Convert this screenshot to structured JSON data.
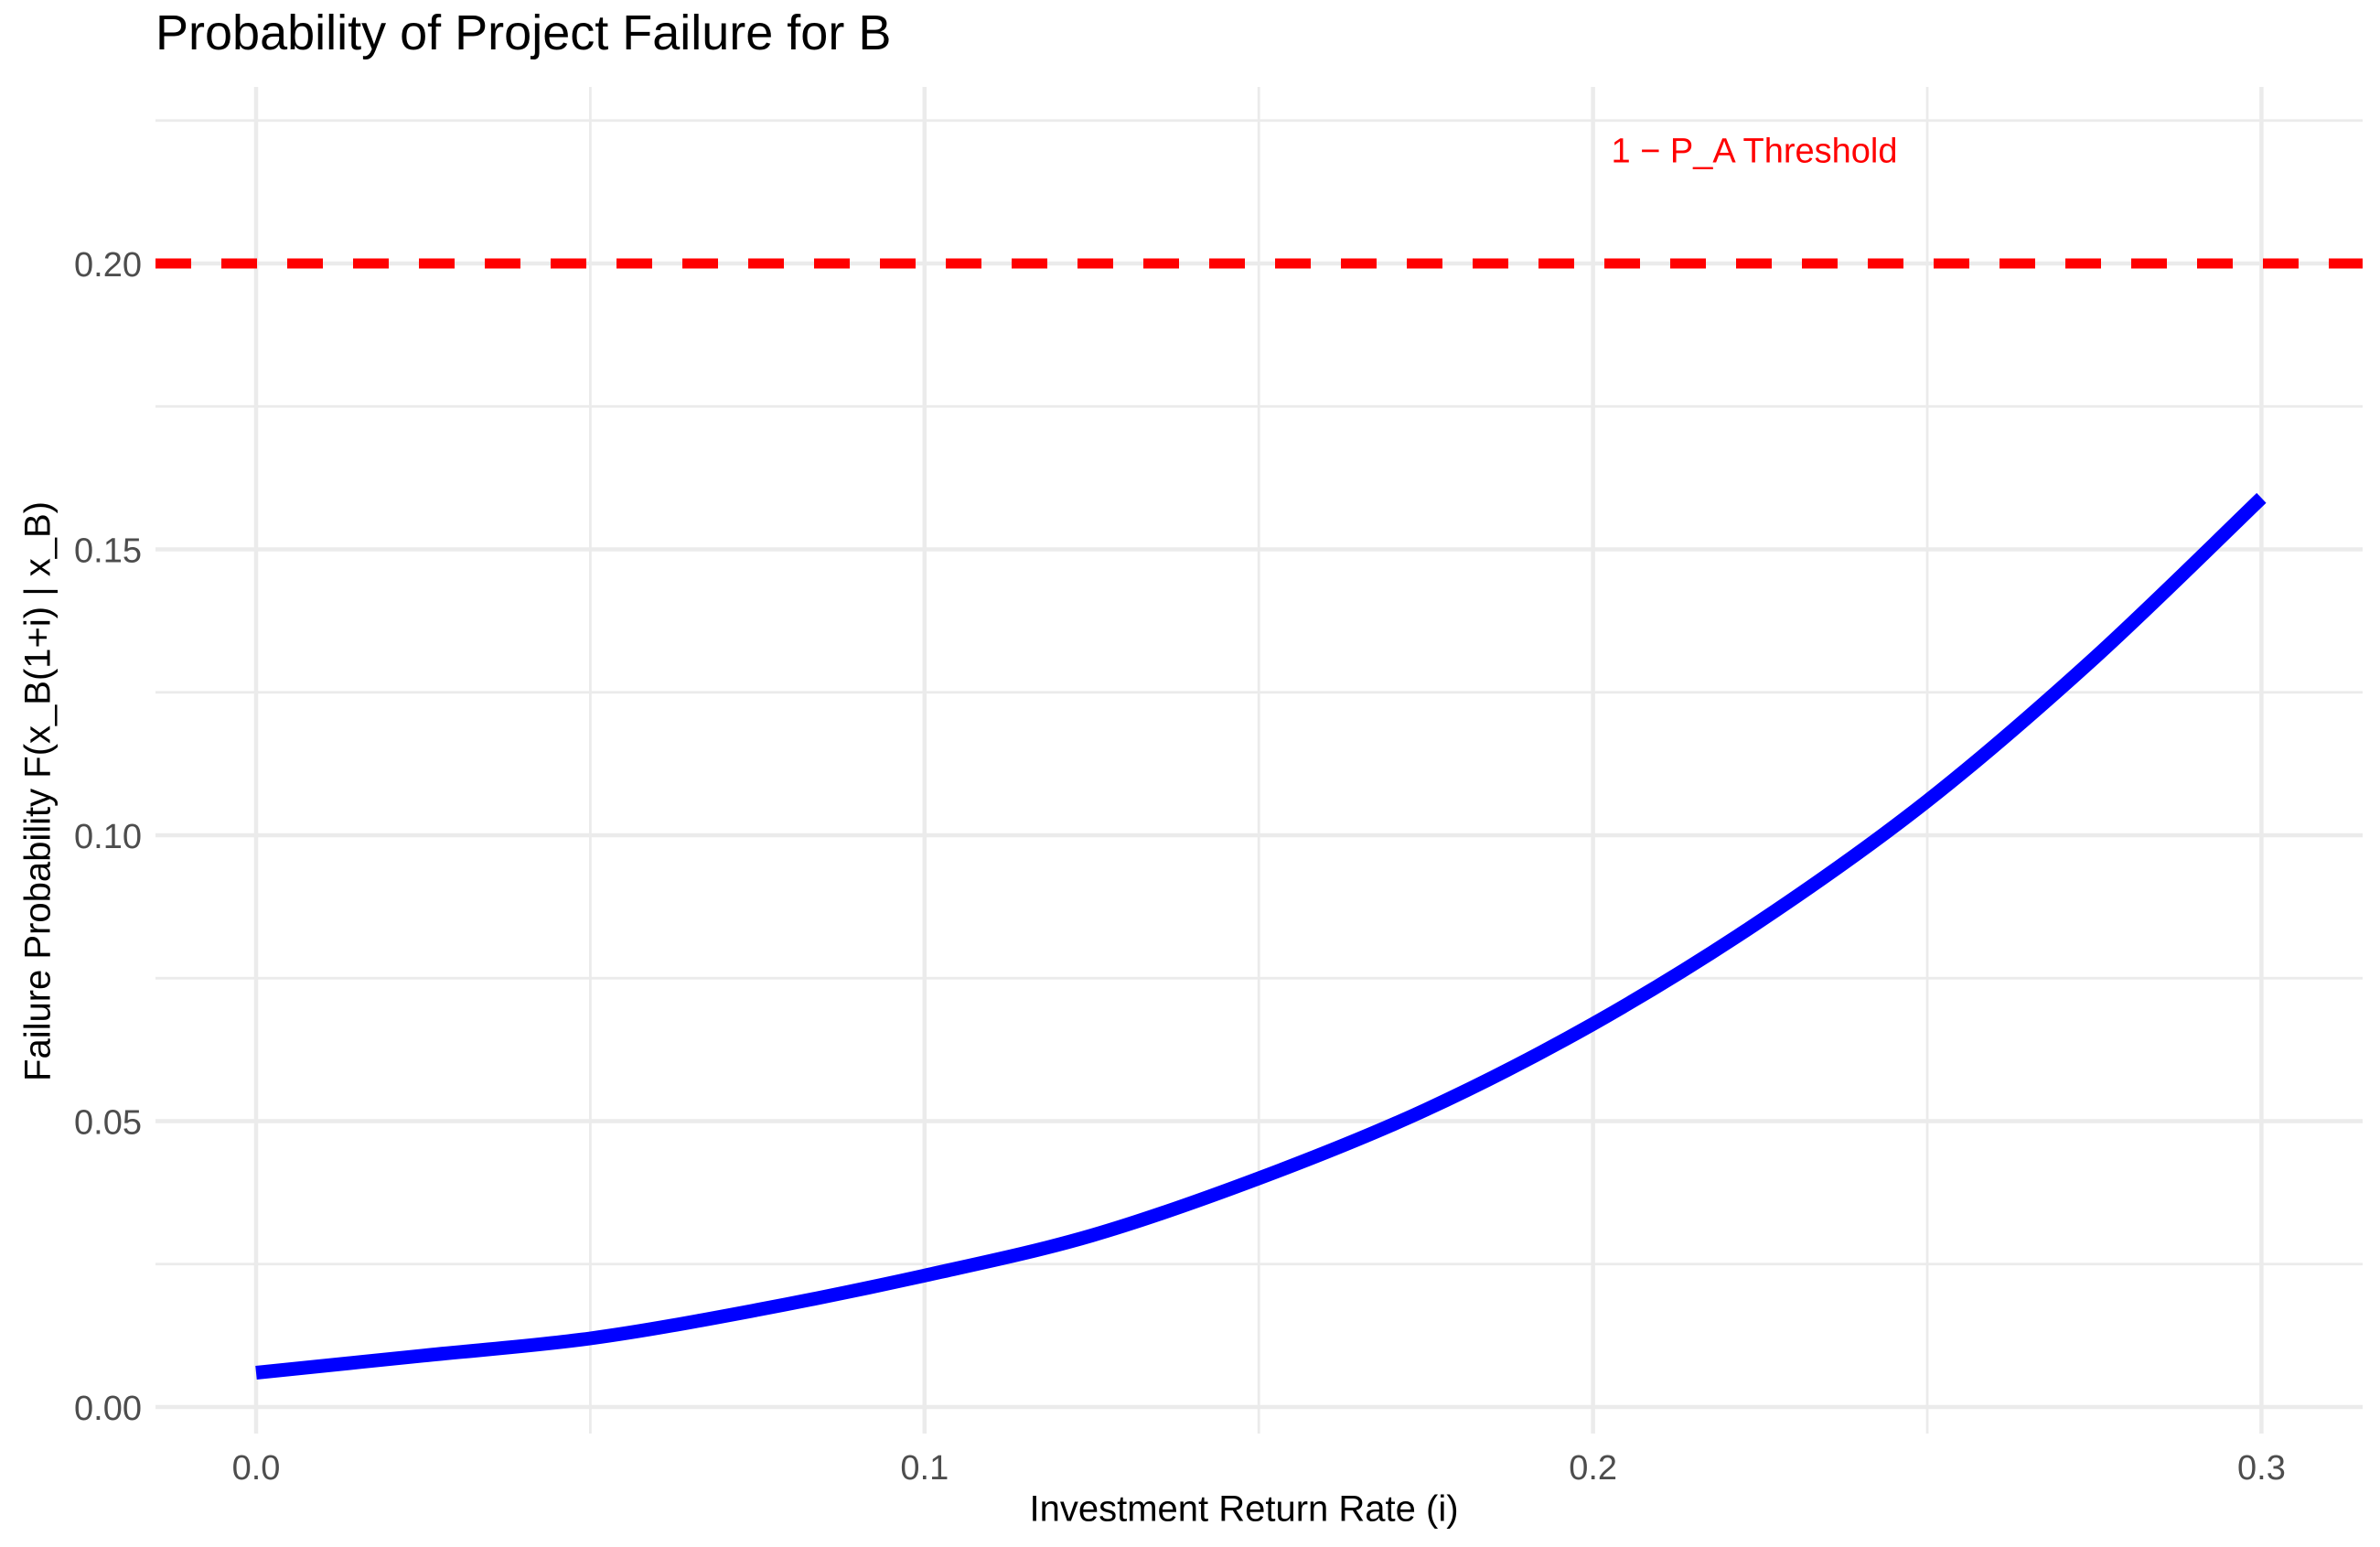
{
  "chart_data": {
    "type": "line",
    "title": "Probability of Project Failure for B",
    "xlabel": "Investment Return Rate (i)",
    "ylabel": "Failure Probability F(x_B(1+i) | x_B)",
    "x": [
      0.0,
      0.025,
      0.05,
      0.075,
      0.1,
      0.125,
      0.15,
      0.175,
      0.2,
      0.225,
      0.25,
      0.275,
      0.3
    ],
    "series": [
      {
        "name": "failure-probability-curve",
        "color": "#0000FF",
        "values": [
          0.006,
          0.009,
          0.012,
          0.017,
          0.023,
          0.03,
          0.04,
          0.052,
          0.067,
          0.085,
          0.106,
          0.131,
          0.159
        ]
      }
    ],
    "threshold": {
      "value": 0.2,
      "label": "1 − P_A Threshold",
      "color": "#FF0000",
      "linestyle": "dashed",
      "label_x": 0.224,
      "label_y": 0.22
    },
    "axes": {
      "x_tick_values": [
        0.0,
        0.1,
        0.2,
        0.3
      ],
      "x_tick_labels": [
        "0.0",
        "0.1",
        "0.2",
        "0.3"
      ],
      "y_tick_values": [
        0.0,
        0.05,
        0.1,
        0.15,
        0.2
      ],
      "y_tick_labels": [
        "0.00",
        "0.05",
        "0.10",
        "0.15",
        "0.20"
      ],
      "x_minor_values": [
        0.05,
        0.15,
        0.25
      ],
      "y_minor_values": [
        0.025,
        0.075,
        0.125,
        0.175,
        0.225
      ],
      "xlim": [
        -0.01505,
        0.31513
      ],
      "ylim": [
        -0.00464,
        0.23088
      ]
    },
    "grid": "major-and-minor",
    "legend_position": "none",
    "colors": {
      "background": "#FFFFFF",
      "gridline": "#EBEBEB",
      "tick_label": "#4D4D4D",
      "text": "#000000"
    }
  }
}
